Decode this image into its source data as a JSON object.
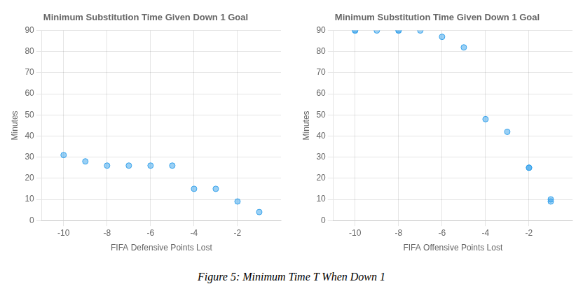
{
  "chart_data": [
    {
      "type": "scatter",
      "title": "Minimum Substitution Time Given Down 1 Goal",
      "xlabel": "FIFA Defensive Points Lost",
      "ylabel": "Minutes",
      "x": [
        -10,
        -9,
        -8,
        -7,
        -6,
        -5,
        -4,
        -3,
        -2,
        -1
      ],
      "values": [
        31,
        28,
        26,
        26,
        26,
        26,
        15,
        15,
        9,
        4
      ],
      "xlim": [
        -11,
        0
      ],
      "ylim": [
        0,
        90
      ],
      "xticks": [
        -10,
        -8,
        -6,
        -4,
        -2
      ],
      "yticks": [
        0,
        10,
        20,
        30,
        40,
        50,
        60,
        70,
        80,
        90
      ],
      "grid": true
    },
    {
      "type": "scatter",
      "title": "Minimum Substitution Time Given Down 1 Goal",
      "xlabel": "FIFA Offensive Points Lost",
      "ylabel": "Minutes",
      "x": [
        -10,
        -10,
        -9,
        -8,
        -8,
        -7,
        -6,
        -5,
        -4,
        -3,
        -2,
        -2,
        -1,
        -1
      ],
      "values": [
        90,
        90,
        90,
        90,
        90,
        90,
        87,
        82,
        48,
        42,
        25,
        25,
        10,
        9
      ],
      "xlim": [
        -11,
        0
      ],
      "ylim": [
        0,
        90
      ],
      "xticks": [
        -10,
        -8,
        -6,
        -4,
        -2
      ],
      "yticks": [
        0,
        10,
        20,
        30,
        40,
        50,
        60,
        70,
        80,
        90
      ],
      "grid": true
    }
  ],
  "caption": "Figure 5: Minimum Time T When Down 1"
}
